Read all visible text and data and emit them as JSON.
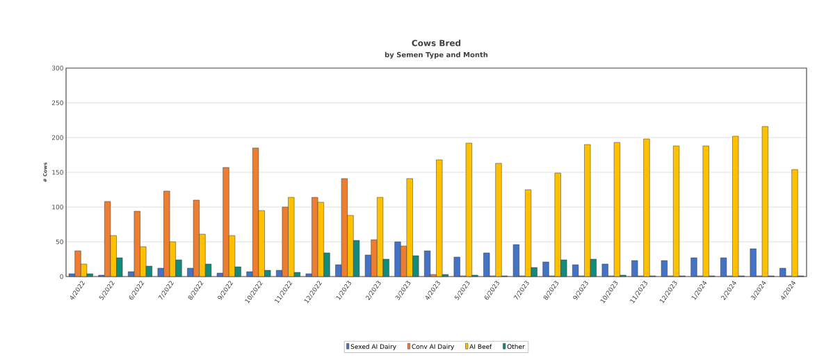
{
  "chart_data": {
    "type": "bar",
    "title": "Cows Bred",
    "subtitle": "by Semen Type and Month",
    "ylabel": "# Cows",
    "categories": [
      "4/2022",
      "5/2022",
      "6/2022",
      "7/2022",
      "8/2022",
      "9/2022",
      "10/2022",
      "11/2022",
      "12/2022",
      "1/2023",
      "2/2023",
      "3/2023",
      "4/2023",
      "5/2023",
      "6/2023",
      "7/2023",
      "8/2023",
      "9/2023",
      "10/2023",
      "11/2023",
      "12/2023",
      "1/2024",
      "2/2024",
      "3/2024",
      "4/2024"
    ],
    "series": [
      {
        "name": "Sexed AI Dairy",
        "color": "#4472c4",
        "values": [
          4,
          2,
          7,
          12,
          12,
          5,
          7,
          9,
          4,
          17,
          31,
          50,
          37,
          28,
          34,
          46,
          21,
          17,
          18,
          23,
          23,
          27,
          27,
          40,
          12
        ]
      },
      {
        "name": "Conv AI Dairy",
        "color": "#ed7d31",
        "values": [
          37,
          108,
          94,
          123,
          110,
          157,
          185,
          100,
          114,
          141,
          53,
          44,
          3,
          1,
          1,
          1,
          1,
          1,
          1,
          1,
          1,
          1,
          1,
          1,
          1
        ]
      },
      {
        "name": "AI Beef",
        "color": "#ffc000",
        "values": [
          18,
          59,
          43,
          50,
          61,
          59,
          95,
          114,
          107,
          88,
          114,
          141,
          168,
          192,
          163,
          125,
          149,
          190,
          193,
          198,
          188,
          188,
          202,
          216,
          154
        ]
      },
      {
        "name": "Other",
        "color": "#138a7a",
        "values": [
          4,
          27,
          15,
          24,
          18,
          14,
          9,
          6,
          34,
          52,
          25,
          30,
          3,
          2,
          1,
          13,
          24,
          25,
          2,
          1,
          1,
          1,
          1,
          1,
          1
        ]
      }
    ],
    "ylim": [
      0,
      300
    ],
    "yticks": [
      0,
      50,
      100,
      150,
      200,
      250,
      300
    ],
    "grid": "y",
    "legend": "bottom"
  }
}
